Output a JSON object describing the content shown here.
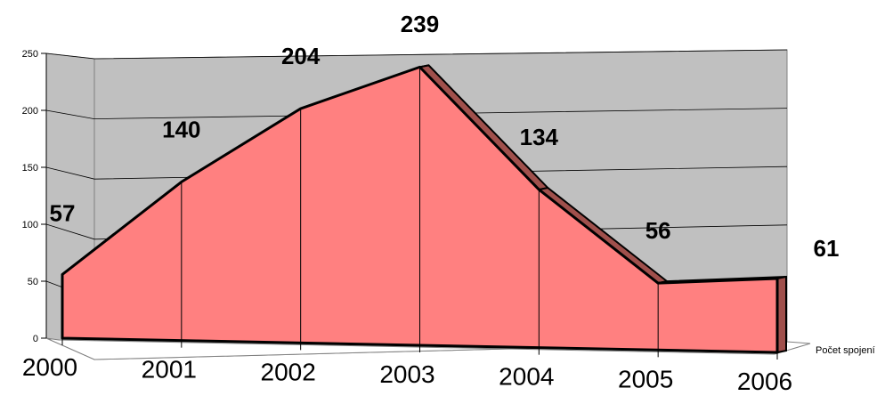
{
  "chart_data": {
    "type": "area",
    "categories": [
      "2000",
      "2001",
      "2002",
      "2003",
      "2004",
      "2005",
      "2006"
    ],
    "series": [
      {
        "name": "Počet spojení",
        "values": [
          57,
          140,
          204,
          239,
          134,
          56,
          61
        ]
      }
    ],
    "data_labels": [
      "57",
      "140",
      "204",
      "239",
      "134",
      "56",
      "61"
    ],
    "y_ticks": [
      "0",
      "50",
      "100",
      "150",
      "200",
      "250"
    ],
    "ylim": [
      0,
      250
    ],
    "grid": true,
    "three_d": true,
    "title": "",
    "xlabel": "",
    "ylabel": "",
    "colors": {
      "area_front": "#ff8080",
      "area_side": "#a0504c",
      "wall": "#c0c0c0",
      "floor": "#ffffff",
      "outline": "#000000"
    }
  }
}
